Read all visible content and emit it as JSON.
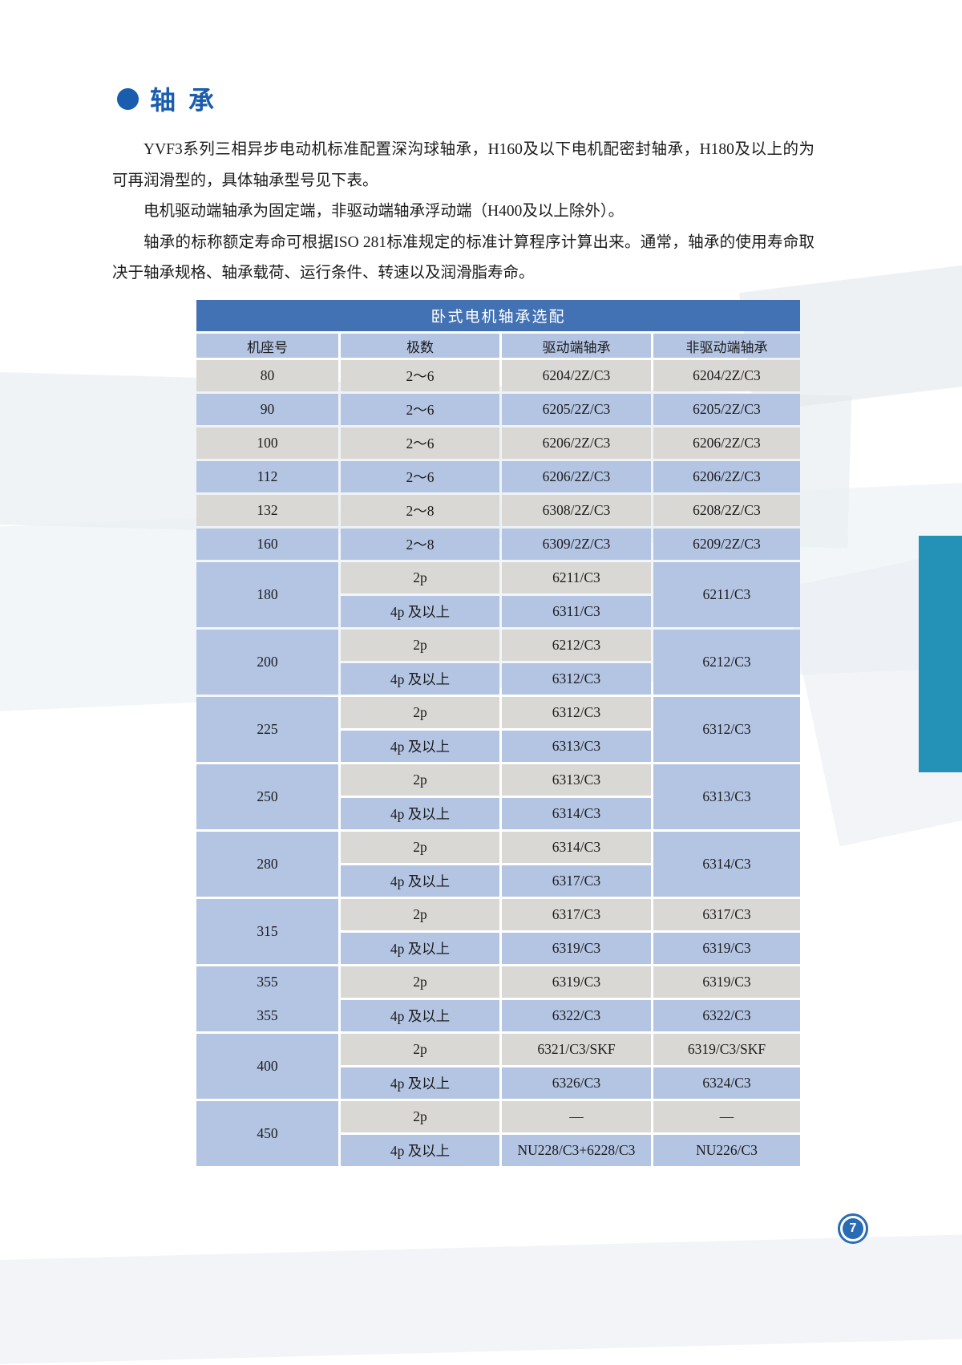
{
  "page": {
    "heading": "轴 承",
    "paragraphs": [
      "YVF3系列三相异步电动机标准配置深沟球轴承，H160及以下电机配密封轴承，H180及以上的为可再润滑型的，具体轴承型号见下表。",
      "电机驱动端轴承为固定端，非驱动端轴承浮动端（H400及以上除外）。",
      "轴承的标称额定寿命可根据ISO 281标准规定的标准计算程序计算出来。通常，轴承的使用寿命取决于轴承规格、轴承载荷、运行条件、转速以及润滑脂寿命。"
    ],
    "page_number": "7"
  },
  "colors": {
    "heading_blue": "#1a5cad",
    "table_title_band_blue": "#4272b4",
    "row_blue": "#b4c5e4",
    "row_gray": "#d9d8d5",
    "teal_accent": "#2492b7",
    "page_badge_blue": "#2a6cb4"
  },
  "table": {
    "title": "卧式电机轴承选配",
    "columns": [
      "机座号",
      "极数",
      "驱动端轴承",
      "非驱动端轴承"
    ],
    "groups": [
      {
        "frame": [
          "80"
        ],
        "tone": "gray",
        "rows": [
          {
            "poles": "2～6",
            "de": "6204/2Z/C3",
            "nde": "6204/2Z/C3",
            "tone": "gray"
          }
        ]
      },
      {
        "frame": [
          "90"
        ],
        "tone": "blue",
        "rows": [
          {
            "poles": "2～6",
            "de": "6205/2Z/C3",
            "nde": "6205/2Z/C3",
            "tone": "blue"
          }
        ]
      },
      {
        "frame": [
          "100"
        ],
        "tone": "gray",
        "rows": [
          {
            "poles": "2～6",
            "de": "6206/2Z/C3",
            "nde": "6206/2Z/C3",
            "tone": "gray"
          }
        ]
      },
      {
        "frame": [
          "112"
        ],
        "tone": "blue",
        "rows": [
          {
            "poles": "2～6",
            "de": "6206/2Z/C3",
            "nde": "6206/2Z/C3",
            "tone": "blue"
          }
        ]
      },
      {
        "frame": [
          "132"
        ],
        "tone": "gray",
        "rows": [
          {
            "poles": "2～8",
            "de": "6308/2Z/C3",
            "nde": "6208/2Z/C3",
            "tone": "gray"
          }
        ]
      },
      {
        "frame": [
          "160"
        ],
        "tone": "blue",
        "rows": [
          {
            "poles": "2～8",
            "de": "6309/2Z/C3",
            "nde": "6209/2Z/C3",
            "tone": "blue"
          }
        ]
      },
      {
        "frame": [
          "180"
        ],
        "tone": "blue",
        "nde_merged": "6211/C3",
        "rows": [
          {
            "poles": "2p",
            "de": "6211/C3",
            "tone": "gray"
          },
          {
            "poles": "4p 及以上",
            "de": "6311/C3",
            "tone": "blue"
          }
        ]
      },
      {
        "frame": [
          "200"
        ],
        "tone": "blue",
        "nde_merged": "6212/C3",
        "rows": [
          {
            "poles": "2p",
            "de": "6212/C3",
            "tone": "gray"
          },
          {
            "poles": "4p 及以上",
            "de": "6312/C3",
            "tone": "blue"
          }
        ]
      },
      {
        "frame": [
          "225"
        ],
        "tone": "blue",
        "nde_merged": "6312/C3",
        "rows": [
          {
            "poles": "2p",
            "de": "6312/C3",
            "tone": "gray"
          },
          {
            "poles": "4p 及以上",
            "de": "6313/C3",
            "tone": "blue"
          }
        ]
      },
      {
        "frame": [
          "250"
        ],
        "tone": "blue",
        "nde_merged": "6313/C3",
        "rows": [
          {
            "poles": "2p",
            "de": "6313/C3",
            "tone": "gray"
          },
          {
            "poles": "4p 及以上",
            "de": "6314/C3",
            "tone": "blue"
          }
        ]
      },
      {
        "frame": [
          "280"
        ],
        "tone": "blue",
        "nde_merged": "6314/C3",
        "rows": [
          {
            "poles": "2p",
            "de": "6314/C3",
            "tone": "gray"
          },
          {
            "poles": "4p 及以上",
            "de": "6317/C3",
            "tone": "blue"
          }
        ]
      },
      {
        "frame": [
          "315"
        ],
        "tone": "blue",
        "rows": [
          {
            "poles": "2p",
            "de": "6317/C3",
            "nde": "6317/C3",
            "tone": "gray"
          },
          {
            "poles": "4p 及以上",
            "de": "6319/C3",
            "nde": "6319/C3",
            "tone": "blue"
          }
        ]
      },
      {
        "frame": [
          "355",
          "355"
        ],
        "tone": "blue",
        "rows": [
          {
            "poles": "2p",
            "de": "6319/C3",
            "nde": "6319/C3",
            "tone": "gray"
          },
          {
            "poles": "4p 及以上",
            "de": "6322/C3",
            "nde": "6322/C3",
            "tone": "blue"
          }
        ]
      },
      {
        "frame": [
          "400"
        ],
        "tone": "blue",
        "rows": [
          {
            "poles": "2p",
            "de": "6321/C3/SKF",
            "nde": "6319/C3/SKF",
            "tone": "gray"
          },
          {
            "poles": "4p 及以上",
            "de": "6326/C3",
            "nde": "6324/C3",
            "tone": "blue"
          }
        ]
      },
      {
        "frame": [
          "450"
        ],
        "tone": "blue",
        "rows": [
          {
            "poles": "2p",
            "de": "—",
            "nde": "—",
            "tone": "gray"
          },
          {
            "poles": "4p 及以上",
            "de": "NU228/C3+6228/C3",
            "nde": "NU226/C3",
            "tone": "blue"
          }
        ]
      }
    ]
  }
}
